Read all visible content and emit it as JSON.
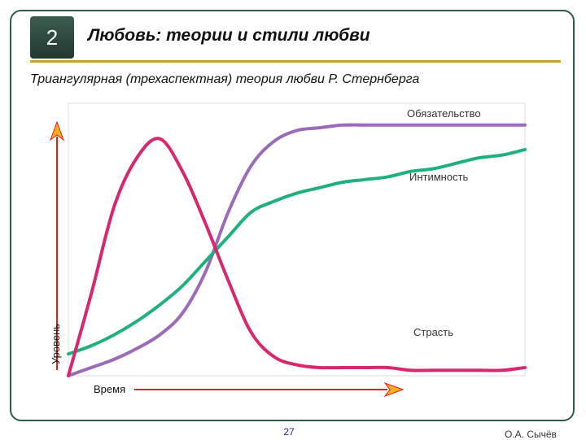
{
  "slide": {
    "number": "2",
    "title": "Любовь: теории и стили любви",
    "subtitle": "Триангулярная (трехаспектная) теория любви Р. Стернберга"
  },
  "footer": {
    "page": "27",
    "author": "О.А. Сычёв"
  },
  "colors": {
    "frame": "#2f5b4a",
    "title_rule": "#c9a227",
    "axis_arrow": "#e31c1c"
  },
  "chart_data": {
    "type": "line",
    "title": "",
    "xlabel": "Время",
    "ylabel": "Уровень",
    "xlim": [
      0,
      100
    ],
    "ylim": [
      0,
      100
    ],
    "grid": false,
    "x": [
      0,
      5,
      10,
      15,
      20,
      25,
      30,
      35,
      40,
      45,
      50,
      55,
      60,
      65,
      70,
      75,
      80,
      85,
      90,
      95,
      100
    ],
    "series": [
      {
        "name": "Обязательство",
        "color": "#9b6ab8",
        "values": [
          0,
          3,
          6,
          10,
          15,
          23,
          38,
          60,
          77,
          86,
          90,
          91,
          92,
          92,
          92,
          92,
          92,
          92,
          92,
          92,
          92
        ]
      },
      {
        "name": "Интимность",
        "color": "#1fb07c",
        "values": [
          8,
          11,
          15,
          20,
          26,
          33,
          42,
          51,
          60,
          64,
          67,
          69,
          71,
          72,
          73,
          75,
          76,
          78,
          80,
          81,
          83
        ]
      },
      {
        "name": "Страсть",
        "color": "#d6286e",
        "values": [
          0,
          30,
          62,
          80,
          87,
          75,
          56,
          35,
          16,
          7,
          4,
          3,
          3,
          3,
          3,
          2,
          2,
          2,
          2,
          2,
          3
        ]
      }
    ]
  }
}
